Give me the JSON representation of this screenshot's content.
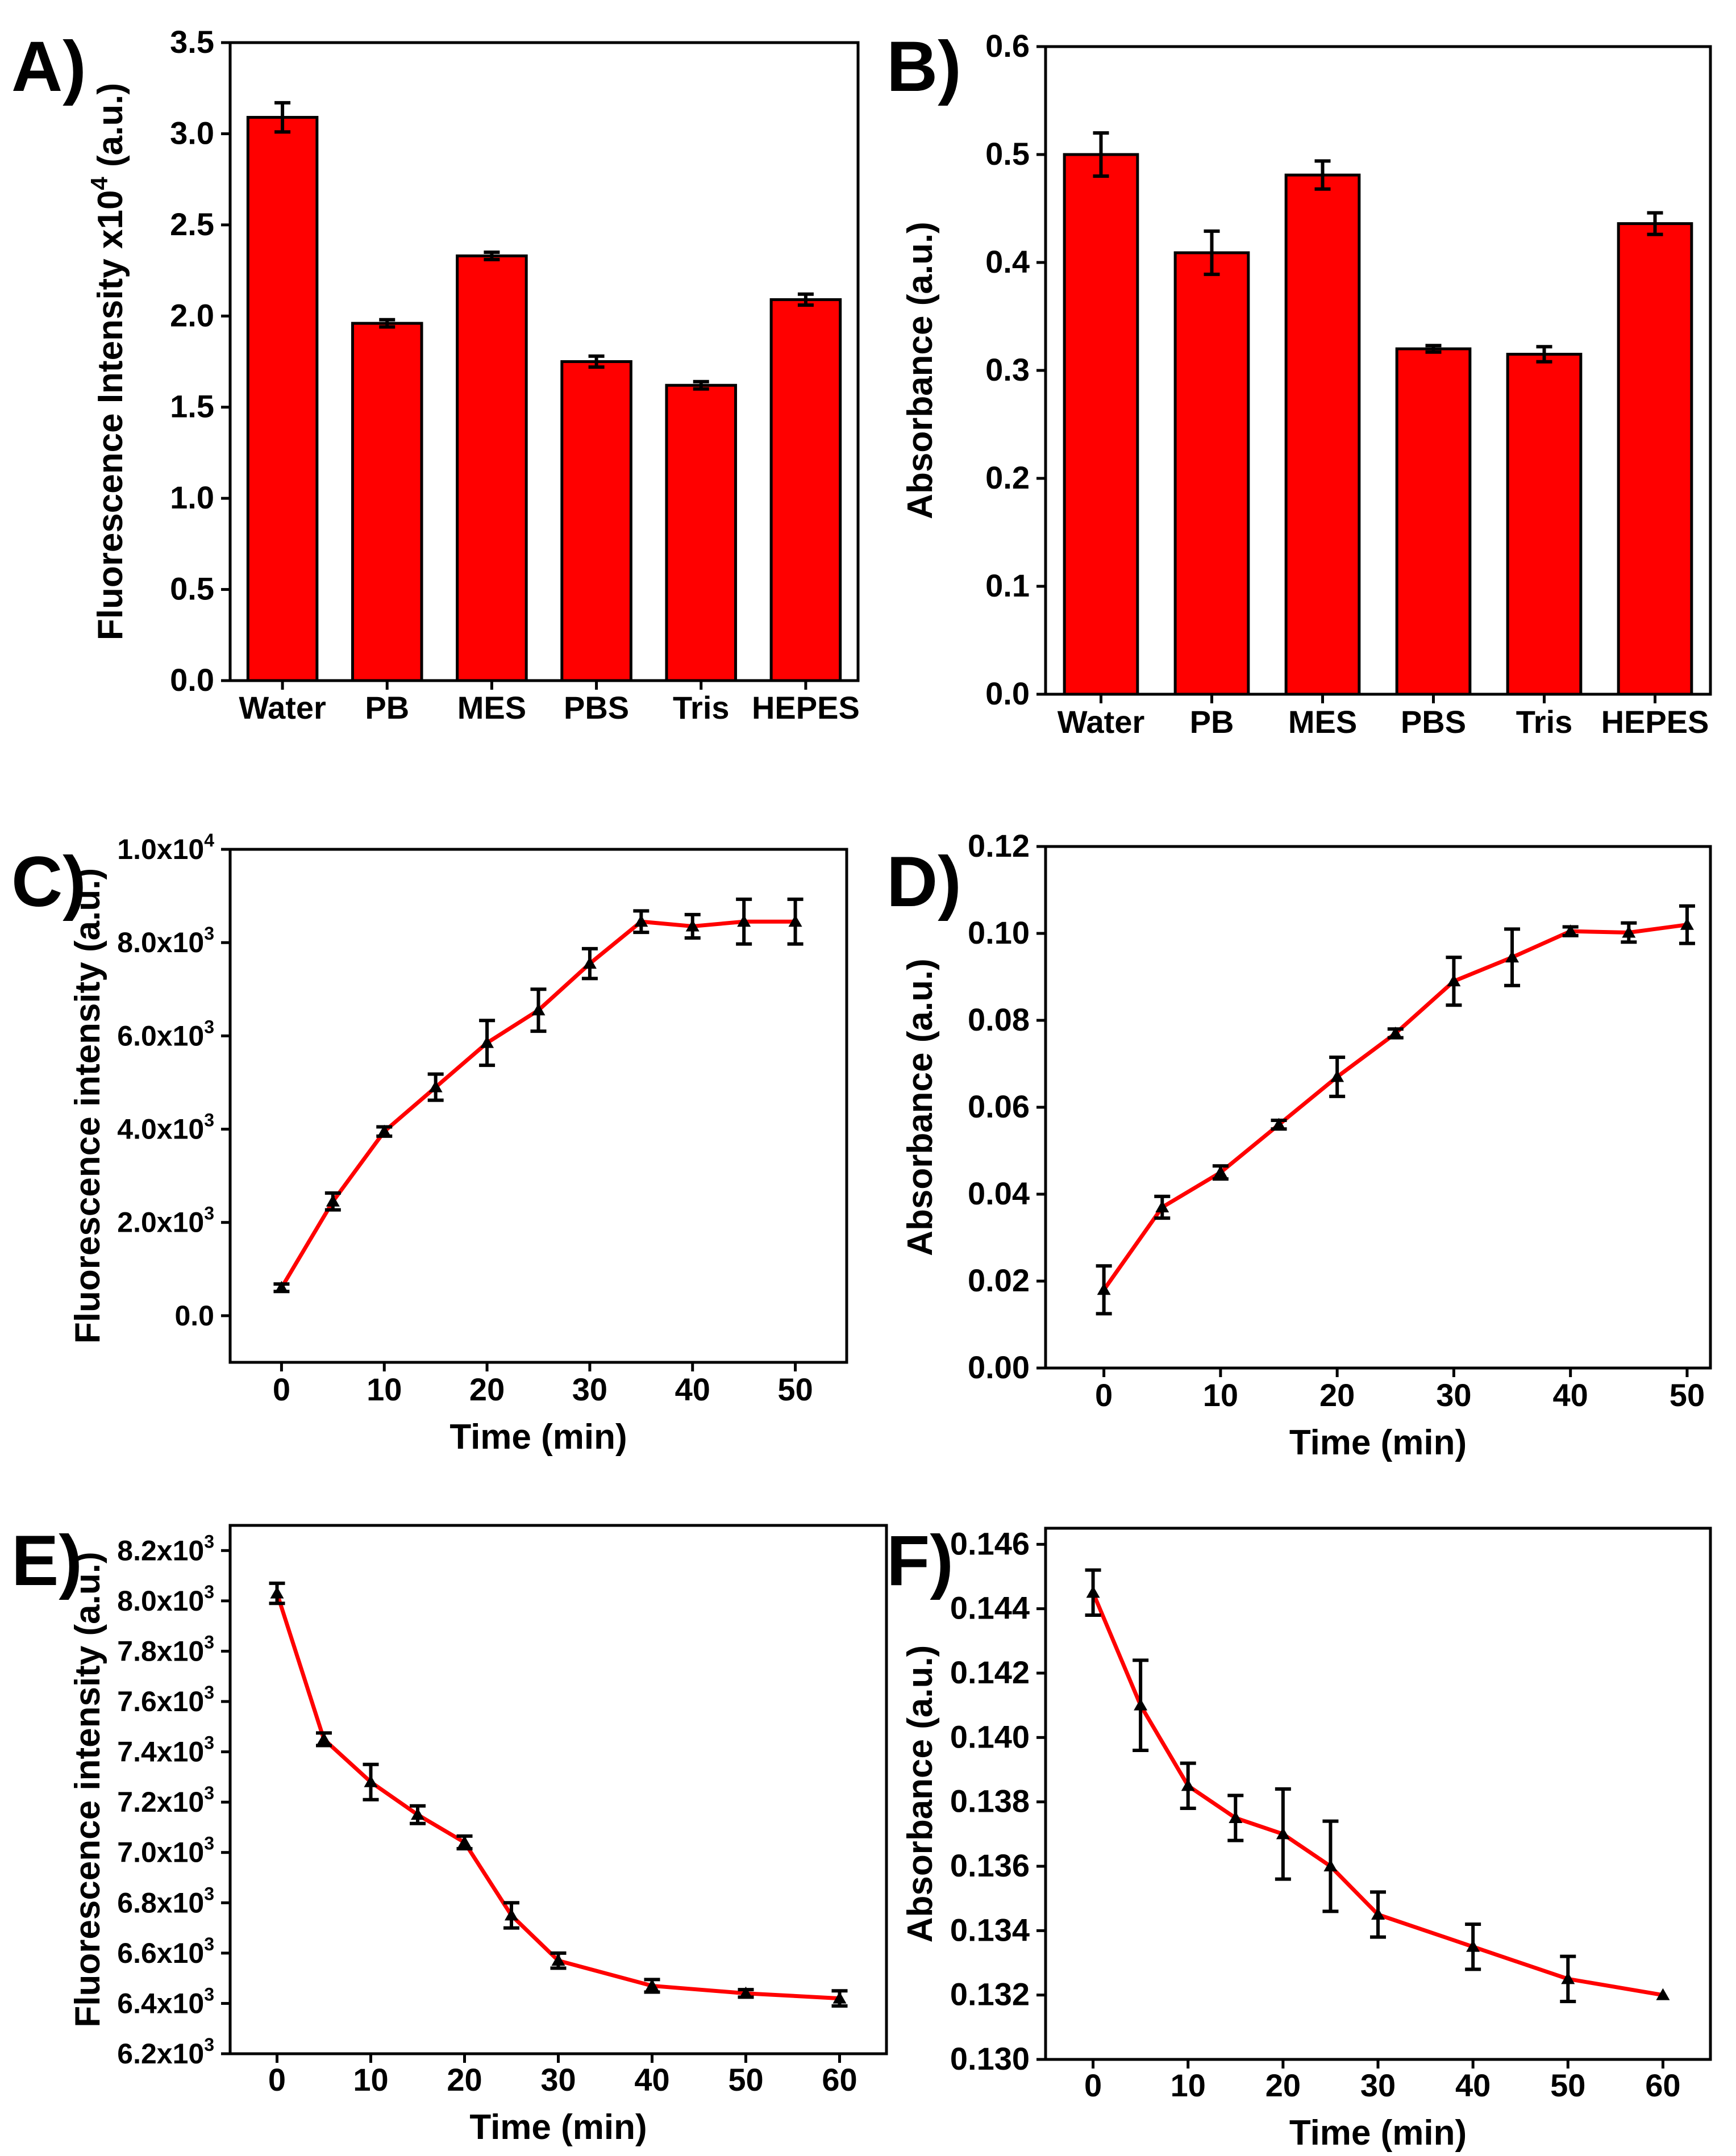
{
  "colors": {
    "bar": "#ff0000",
    "line": "#ff0000",
    "marker": "#000000",
    "axis": "#000000"
  },
  "chart_data": [
    {
      "panel": "A)",
      "type": "bar",
      "ylabel": "Fluorescence Intensity x10",
      "ylabel_exp": "4",
      "ylabel_unit": " (a.u.)",
      "ylim": [
        0,
        3.5
      ],
      "yticks": [
        "0.0",
        "0.5",
        "1.0",
        "1.5",
        "2.0",
        "2.5",
        "3.0",
        "3.5"
      ],
      "categories": [
        "Water",
        "PB",
        "MES",
        "PBS",
        "Tris",
        "HEPES"
      ],
      "values": [
        3.09,
        1.96,
        2.33,
        1.75,
        1.62,
        2.09
      ],
      "errors": [
        0.08,
        0.02,
        0.02,
        0.03,
        0.02,
        0.03
      ]
    },
    {
      "panel": "B)",
      "type": "bar",
      "ylabel": "Absorbance (a.u.)",
      "ylim": [
        0,
        0.6
      ],
      "yticks": [
        "0.0",
        "0.1",
        "0.2",
        "0.3",
        "0.4",
        "0.5",
        "0.6"
      ],
      "categories": [
        "Water",
        "PB",
        "MES",
        "PBS",
        "Tris",
        "HEPES"
      ],
      "values": [
        0.5,
        0.409,
        0.481,
        0.32,
        0.315,
        0.436
      ],
      "errors": [
        0.02,
        0.02,
        0.013,
        0.003,
        0.007,
        0.01
      ]
    },
    {
      "panel": "C)",
      "type": "line",
      "xlabel": "Time (min)",
      "ylabel": "Fluorescence intensity (a.u.)",
      "xlim": [
        -5,
        55
      ],
      "ylim": [
        -1000,
        10000
      ],
      "xticks": [
        "0",
        "10",
        "20",
        "30",
        "40",
        "50"
      ],
      "yticks": [
        "0.0",
        "2.0x10",
        "4.0x10",
        "6.0x10",
        "8.0x10",
        "1.0x10"
      ],
      "ytick_exps": [
        "",
        "3",
        "3",
        "3",
        "3",
        "4"
      ],
      "x": [
        0,
        5,
        10,
        15,
        20,
        25,
        30,
        35,
        40,
        45,
        50
      ],
      "y": [
        600,
        2450,
        3950,
        4900,
        5850,
        6550,
        7550,
        8450,
        8350,
        8450,
        8450
      ],
      "errors": [
        80,
        180,
        100,
        280,
        480,
        450,
        320,
        230,
        250,
        480,
        480
      ]
    },
    {
      "panel": "D)",
      "type": "line",
      "xlabel": "Time (min)",
      "ylabel": "Absorbance (a.u.)",
      "xlim": [
        -5,
        52
      ],
      "ylim": [
        0,
        0.12
      ],
      "xticks": [
        "0",
        "10",
        "20",
        "30",
        "40",
        "50"
      ],
      "yticks": [
        "0.00",
        "0.02",
        "0.04",
        "0.06",
        "0.08",
        "0.10",
        "0.12"
      ],
      "x": [
        0,
        5,
        10,
        15,
        20,
        25,
        30,
        35,
        40,
        45,
        50
      ],
      "y": [
        0.018,
        0.037,
        0.045,
        0.056,
        0.067,
        0.077,
        0.089,
        0.0945,
        0.1005,
        0.1002,
        0.102
      ],
      "errors": [
        0.0055,
        0.0025,
        0.0015,
        0.001,
        0.0045,
        0.001,
        0.0055,
        0.0065,
        0.001,
        0.0022,
        0.0043
      ]
    },
    {
      "panel": "E)",
      "type": "line",
      "xlabel": "Time (min)",
      "ylabel": "Fluorescence intensity (a.u.)",
      "xlim": [
        -5,
        65
      ],
      "ylim": [
        6200,
        8300
      ],
      "xticks": [
        "0",
        "10",
        "20",
        "30",
        "40",
        "50",
        "60"
      ],
      "yticks": [
        "6.2x10",
        "6.4x10",
        "6.6x10",
        "6.8x10",
        "7.0x10",
        "7.2x10",
        "7.4x10",
        "7.6x10",
        "7.8x10",
        "8.0x10",
        "8.2x10"
      ],
      "ytick_exps": [
        "3",
        "3",
        "3",
        "3",
        "3",
        "3",
        "3",
        "3",
        "3",
        "3",
        "3"
      ],
      "x": [
        0,
        5,
        10,
        15,
        20,
        25,
        30,
        40,
        50,
        60
      ],
      "y": [
        8030,
        7450,
        7280,
        7150,
        7040,
        6750,
        6570,
        6470,
        6440,
        6420
      ],
      "errors": [
        40,
        25,
        70,
        35,
        25,
        50,
        30,
        25,
        15,
        30
      ]
    },
    {
      "panel": "F)",
      "type": "line",
      "xlabel": "Time (min)",
      "ylabel": "Absorbance (a.u.)",
      "xlim": [
        -5,
        65
      ],
      "ylim": [
        0.13,
        0.1465
      ],
      "xticks": [
        "0",
        "10",
        "20",
        "30",
        "40",
        "50",
        "60"
      ],
      "yticks": [
        "0.130",
        "0.132",
        "0.134",
        "0.136",
        "0.138",
        "0.140",
        "0.142",
        "0.144",
        "0.146"
      ],
      "x": [
        0,
        5,
        10,
        15,
        20,
        25,
        30,
        40,
        50,
        60
      ],
      "y": [
        0.1445,
        0.141,
        0.1385,
        0.1375,
        0.137,
        0.136,
        0.1345,
        0.1335,
        0.1325,
        0.132
      ],
      "errors": [
        0.0007,
        0.0014,
        0.0007,
        0.0007,
        0.0014,
        0.0014,
        0.0007,
        0.0007,
        0.0007,
        0.0
      ]
    }
  ]
}
